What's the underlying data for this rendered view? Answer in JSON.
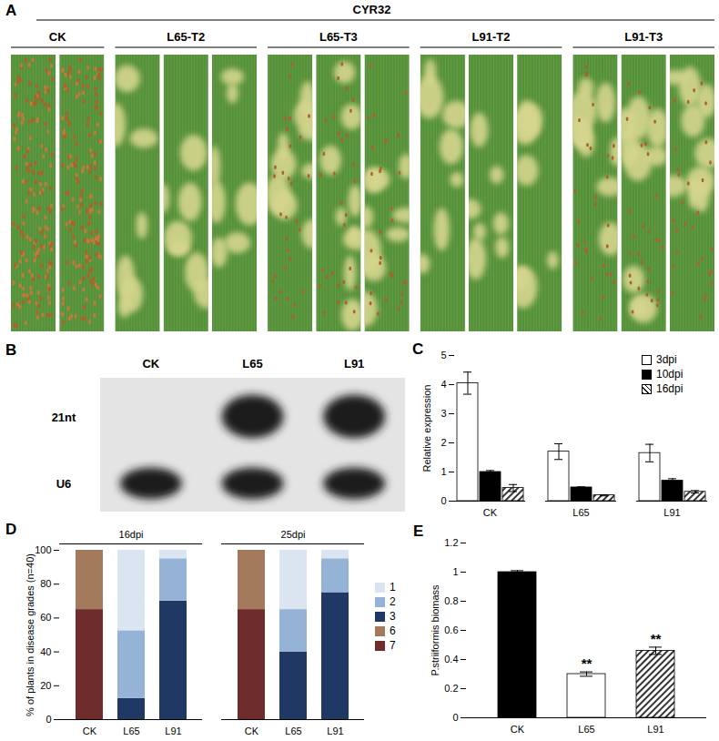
{
  "panel_labels": [
    "A",
    "B",
    "C",
    "D",
    "E"
  ],
  "photos": {
    "title": "CYR32",
    "groups": [
      {
        "label": "CK",
        "leaves": 2
      },
      {
        "label": "L65-T2",
        "leaves": 3
      },
      {
        "label": "L65-T3",
        "leaves": 3
      },
      {
        "label": "L91-T2",
        "leaves": 3
      },
      {
        "label": "L91-T3",
        "leaves": 3
      }
    ]
  },
  "blot": {
    "lanes": [
      "CK",
      "L65",
      "L91"
    ],
    "rows": [
      {
        "label": "21nt",
        "bands": [
          false,
          true,
          true
        ]
      },
      {
        "label": "U6",
        "bands": [
          true,
          true,
          true
        ]
      }
    ]
  },
  "chart_data": [
    {
      "type": "bar",
      "y_label": "Relative expression",
      "categories": [
        "CK",
        "L65",
        "L91"
      ],
      "series": [
        {
          "name": "3dpi",
          "color": "#ffffff",
          "values": [
            4.05,
            1.7,
            1.65
          ],
          "errors": [
            0.38,
            0.27,
            0.3
          ]
        },
        {
          "name": "10dpi",
          "color": "#000000",
          "values": [
            1,
            0.47,
            0.7
          ],
          "errors": [
            0.05,
            0.02,
            0.07
          ]
        },
        {
          "name": "16dpi",
          "color": "#000000",
          "values": [
            0.45,
            0.2,
            0.32
          ],
          "errors": [
            0.12,
            0.02,
            0.04
          ]
        }
      ],
      "ylim": [
        0,
        5
      ],
      "yticks": [
        0,
        1,
        2,
        3,
        4,
        5
      ],
      "legend": "top-right"
    },
    {
      "type": "bar",
      "stacked": true,
      "y_label": "% of plants in disease grades (n=40)",
      "groups": [
        "16dpi",
        "25dpi"
      ],
      "categories": [
        "CK",
        "L65",
        "L91"
      ],
      "series": [
        {
          "name": "1",
          "color": "#dbe5f1",
          "values": [
            [
              0,
              47.5,
              5
            ],
            [
              0,
              35,
              5
            ]
          ]
        },
        {
          "name": "2",
          "color": "#95b3d7",
          "values": [
            [
              0,
              40,
              25
            ],
            [
              0,
              25,
              20
            ]
          ]
        },
        {
          "name": "3",
          "color": "#1f3864",
          "values": [
            [
              0,
              12.5,
              70
            ],
            [
              0,
              40,
              75
            ]
          ]
        },
        {
          "name": "6",
          "color": "#a47a5c",
          "values": [
            [
              35,
              0,
              0
            ],
            [
              35,
              0,
              0
            ]
          ]
        },
        {
          "name": "7",
          "color": "#6f2c2c",
          "values": [
            [
              65,
              0,
              0
            ],
            [
              65,
              0,
              0
            ]
          ]
        }
      ],
      "ylim": [
        0,
        100
      ],
      "yticks": [
        0,
        20,
        40,
        60,
        80,
        100
      ],
      "legend": "right"
    },
    {
      "type": "bar",
      "y_label": "P.striiformis biomass",
      "categories": [
        "CK",
        "L65",
        "L91"
      ],
      "values": [
        1,
        0.3,
        0.46
      ],
      "errors": [
        0.01,
        0.015,
        0.025
      ],
      "colors": [
        "#000000",
        "#ffffff",
        "#000000"
      ],
      "ylim": [
        0,
        1.2
      ],
      "yticks": [
        0,
        0.2,
        0.4,
        0.6,
        0.8,
        1,
        1.2
      ],
      "annotations": [
        {
          "category": "L65",
          "text": "**"
        },
        {
          "category": "L91",
          "text": "**"
        }
      ]
    }
  ]
}
